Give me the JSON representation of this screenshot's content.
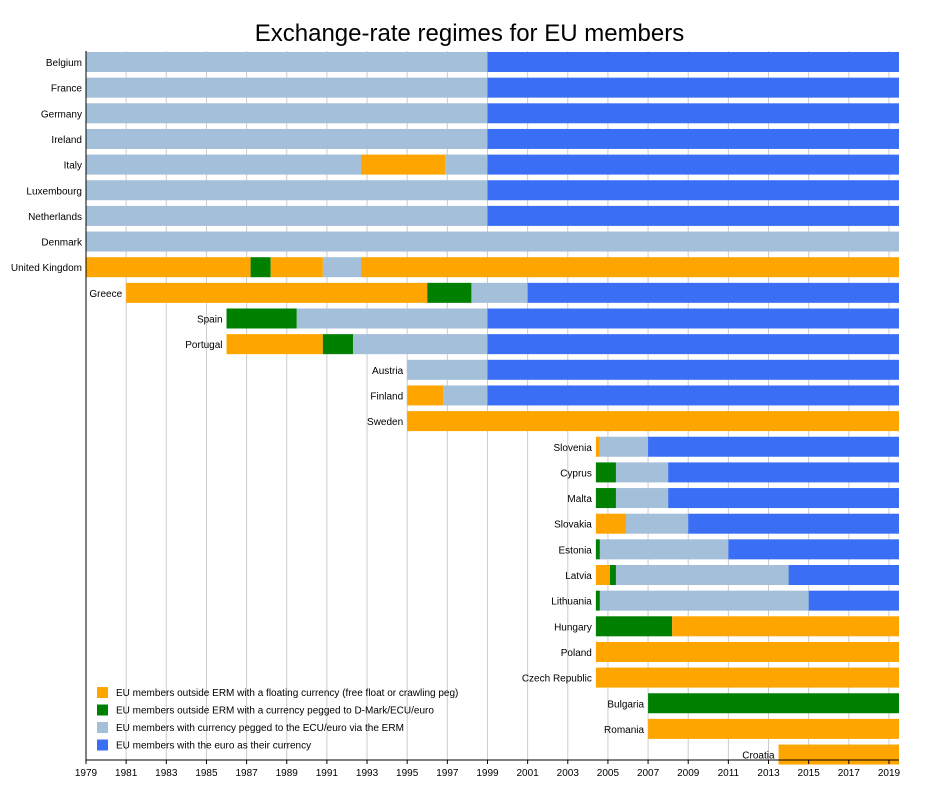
{
  "chart_data": {
    "type": "bar",
    "orientation": "horizontal-timeline",
    "title": "Exchange-rate regimes for EU members",
    "xlim": [
      1979,
      2019.5
    ],
    "x_ticks": [
      "1979",
      "1981",
      "1983",
      "1985",
      "1987",
      "1989",
      "1991",
      "1993",
      "1995",
      "1997",
      "1999",
      "2001",
      "2003",
      "2005",
      "2007",
      "2009",
      "2011",
      "2013",
      "2015",
      "2017",
      "2019"
    ],
    "grid": true,
    "legend_position": "bottom-left",
    "regimes": [
      {
        "key": "float",
        "name": "EU members outside ERM with a floating currency (free float or crawling peg)",
        "color": "#ffa500"
      },
      {
        "key": "peg",
        "name": "EU members outside ERM with a currency pegged to D-Mark/ECU/euro",
        "color": "#008000"
      },
      {
        "key": "erm",
        "name": "EU members with currency pegged to the ECU/euro via the ERM",
        "color": "#a3bfd9"
      },
      {
        "key": "euro",
        "name": "EU members with the euro as their currency",
        "color": "#3a6ff5"
      }
    ],
    "countries": [
      {
        "name": "Belgium",
        "segments": [
          {
            "start": 1979,
            "end": 1999,
            "regime": "erm"
          },
          {
            "start": 1999,
            "end": 2019.5,
            "regime": "euro"
          }
        ]
      },
      {
        "name": "France",
        "segments": [
          {
            "start": 1979,
            "end": 1999,
            "regime": "erm"
          },
          {
            "start": 1999,
            "end": 2019.5,
            "regime": "euro"
          }
        ]
      },
      {
        "name": "Germany",
        "segments": [
          {
            "start": 1979,
            "end": 1999,
            "regime": "erm"
          },
          {
            "start": 1999,
            "end": 2019.5,
            "regime": "euro"
          }
        ]
      },
      {
        "name": "Ireland",
        "segments": [
          {
            "start": 1979,
            "end": 1999,
            "regime": "erm"
          },
          {
            "start": 1999,
            "end": 2019.5,
            "regime": "euro"
          }
        ]
      },
      {
        "name": "Italy",
        "segments": [
          {
            "start": 1979,
            "end": 1992.7,
            "regime": "erm"
          },
          {
            "start": 1992.7,
            "end": 1996.9,
            "regime": "float"
          },
          {
            "start": 1996.9,
            "end": 1999,
            "regime": "erm"
          },
          {
            "start": 1999,
            "end": 2019.5,
            "regime": "euro"
          }
        ]
      },
      {
        "name": "Luxembourg",
        "segments": [
          {
            "start": 1979,
            "end": 1999,
            "regime": "erm"
          },
          {
            "start": 1999,
            "end": 2019.5,
            "regime": "euro"
          }
        ]
      },
      {
        "name": "Netherlands",
        "segments": [
          {
            "start": 1979,
            "end": 1999,
            "regime": "erm"
          },
          {
            "start": 1999,
            "end": 2019.5,
            "regime": "euro"
          }
        ]
      },
      {
        "name": "Denmark",
        "segments": [
          {
            "start": 1979,
            "end": 2019.5,
            "regime": "erm"
          }
        ]
      },
      {
        "name": "United Kingdom",
        "segments": [
          {
            "start": 1979,
            "end": 1987.2,
            "regime": "float"
          },
          {
            "start": 1987.2,
            "end": 1988.2,
            "regime": "peg"
          },
          {
            "start": 1988.2,
            "end": 1990.8,
            "regime": "float"
          },
          {
            "start": 1990.8,
            "end": 1992.7,
            "regime": "erm"
          },
          {
            "start": 1992.7,
            "end": 2019.5,
            "regime": "float"
          }
        ]
      },
      {
        "name": "Greece",
        "segments": [
          {
            "start": 1981,
            "end": 1996,
            "regime": "float"
          },
          {
            "start": 1996,
            "end": 1998.2,
            "regime": "peg"
          },
          {
            "start": 1998.2,
            "end": 2001,
            "regime": "erm"
          },
          {
            "start": 2001,
            "end": 2019.5,
            "regime": "euro"
          }
        ]
      },
      {
        "name": "Spain",
        "segments": [
          {
            "start": 1986,
            "end": 1989.5,
            "regime": "peg"
          },
          {
            "start": 1989.5,
            "end": 1999,
            "regime": "erm"
          },
          {
            "start": 1999,
            "end": 2019.5,
            "regime": "euro"
          }
        ]
      },
      {
        "name": "Portugal",
        "segments": [
          {
            "start": 1986,
            "end": 1990.8,
            "regime": "float"
          },
          {
            "start": 1990.8,
            "end": 1992.3,
            "regime": "peg"
          },
          {
            "start": 1992.3,
            "end": 1999,
            "regime": "erm"
          },
          {
            "start": 1999,
            "end": 2019.5,
            "regime": "euro"
          }
        ]
      },
      {
        "name": "Austria",
        "segments": [
          {
            "start": 1995,
            "end": 1999,
            "regime": "erm"
          },
          {
            "start": 1999,
            "end": 2019.5,
            "regime": "euro"
          }
        ]
      },
      {
        "name": "Finland",
        "segments": [
          {
            "start": 1995,
            "end": 1996.8,
            "regime": "float"
          },
          {
            "start": 1996.8,
            "end": 1999,
            "regime": "erm"
          },
          {
            "start": 1999,
            "end": 2019.5,
            "regime": "euro"
          }
        ]
      },
      {
        "name": "Sweden",
        "segments": [
          {
            "start": 1995,
            "end": 2019.5,
            "regime": "float"
          }
        ]
      },
      {
        "name": "Slovenia",
        "segments": [
          {
            "start": 2004.4,
            "end": 2004.6,
            "regime": "float"
          },
          {
            "start": 2004.6,
            "end": 2007,
            "regime": "erm"
          },
          {
            "start": 2007,
            "end": 2019.5,
            "regime": "euro"
          }
        ]
      },
      {
        "name": "Cyprus",
        "segments": [
          {
            "start": 2004.4,
            "end": 2005.4,
            "regime": "peg"
          },
          {
            "start": 2005.4,
            "end": 2008,
            "regime": "erm"
          },
          {
            "start": 2008,
            "end": 2019.5,
            "regime": "euro"
          }
        ]
      },
      {
        "name": "Malta",
        "segments": [
          {
            "start": 2004.4,
            "end": 2005.4,
            "regime": "peg"
          },
          {
            "start": 2005.4,
            "end": 2008,
            "regime": "erm"
          },
          {
            "start": 2008,
            "end": 2019.5,
            "regime": "euro"
          }
        ]
      },
      {
        "name": "Slovakia",
        "segments": [
          {
            "start": 2004.4,
            "end": 2005.9,
            "regime": "float"
          },
          {
            "start": 2005.9,
            "end": 2009,
            "regime": "erm"
          },
          {
            "start": 2009,
            "end": 2019.5,
            "regime": "euro"
          }
        ]
      },
      {
        "name": "Estonia",
        "segments": [
          {
            "start": 2004.4,
            "end": 2004.6,
            "regime": "peg"
          },
          {
            "start": 2004.6,
            "end": 2011,
            "regime": "erm"
          },
          {
            "start": 2011,
            "end": 2019.5,
            "regime": "euro"
          }
        ]
      },
      {
        "name": "Latvia",
        "segments": [
          {
            "start": 2004.4,
            "end": 2005.1,
            "regime": "float"
          },
          {
            "start": 2005.1,
            "end": 2005.4,
            "regime": "peg"
          },
          {
            "start": 2005.4,
            "end": 2014,
            "regime": "erm"
          },
          {
            "start": 2014,
            "end": 2019.5,
            "regime": "euro"
          }
        ]
      },
      {
        "name": "Lithuania",
        "segments": [
          {
            "start": 2004.4,
            "end": 2004.6,
            "regime": "peg"
          },
          {
            "start": 2004.6,
            "end": 2015,
            "regime": "erm"
          },
          {
            "start": 2015,
            "end": 2019.5,
            "regime": "euro"
          }
        ]
      },
      {
        "name": "Hungary",
        "segments": [
          {
            "start": 2004.4,
            "end": 2008.2,
            "regime": "peg"
          },
          {
            "start": 2008.2,
            "end": 2019.5,
            "regime": "float"
          }
        ]
      },
      {
        "name": "Poland",
        "segments": [
          {
            "start": 2004.4,
            "end": 2019.5,
            "regime": "float"
          }
        ]
      },
      {
        "name": "Czech Republic",
        "segments": [
          {
            "start": 2004.4,
            "end": 2019.5,
            "regime": "float"
          }
        ]
      },
      {
        "name": "Bulgaria",
        "segments": [
          {
            "start": 2007,
            "end": 2019.5,
            "regime": "peg"
          }
        ]
      },
      {
        "name": "Romania",
        "segments": [
          {
            "start": 2007,
            "end": 2019.5,
            "regime": "float"
          }
        ]
      },
      {
        "name": "Croatia",
        "segments": [
          {
            "start": 2013.5,
            "end": 2019.5,
            "regime": "float"
          }
        ]
      }
    ]
  }
}
